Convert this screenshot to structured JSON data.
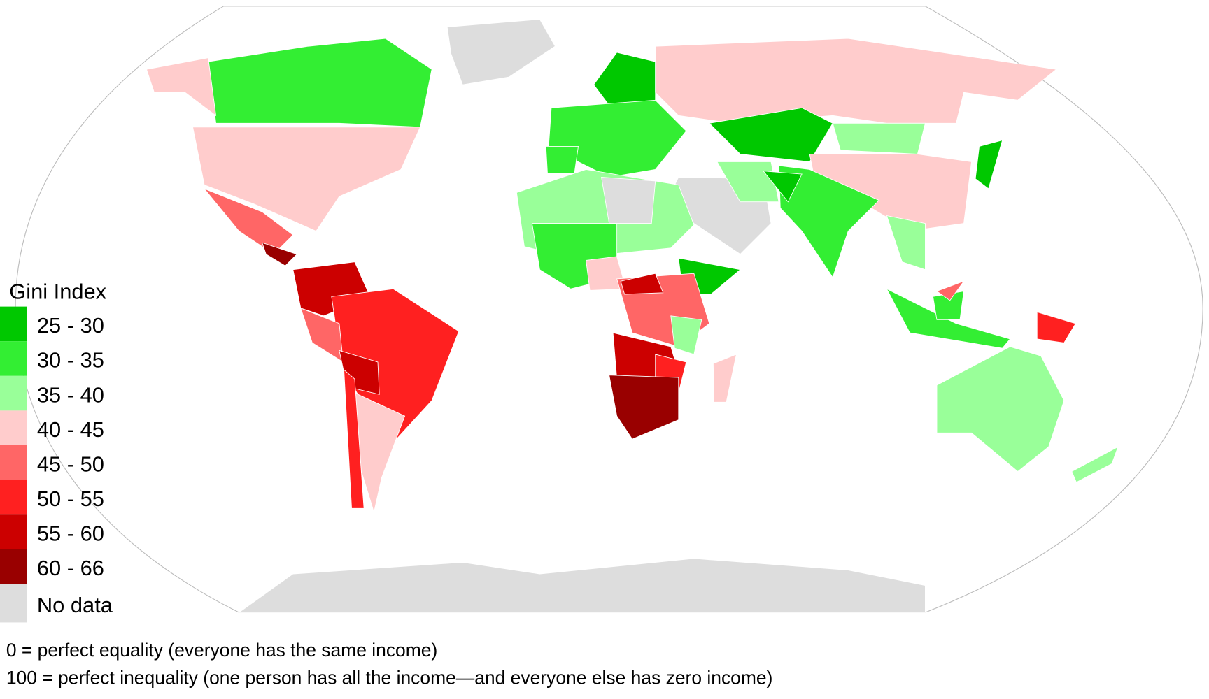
{
  "legend": {
    "title": "Gini Index",
    "items": [
      {
        "label": "25 - 30",
        "color": "#00c800"
      },
      {
        "label": "30 - 35",
        "color": "#33ee33"
      },
      {
        "label": "35 - 40",
        "color": "#99ff99"
      },
      {
        "label": "40 - 45",
        "color": "#ffcccc"
      },
      {
        "label": "45 - 50",
        "color": "#ff6666"
      },
      {
        "label": "50 - 55",
        "color": "#ff2020"
      },
      {
        "label": "55 - 60",
        "color": "#cc0000"
      },
      {
        "label": "60 - 66",
        "color": "#990000"
      },
      {
        "label": "No data",
        "color": "#dddddd"
      }
    ]
  },
  "notes": [
    "0 = perfect equality (everyone has the same income)",
    "100 = perfect inequality (one person has all the income—and everyone else has zero income)"
  ]
}
